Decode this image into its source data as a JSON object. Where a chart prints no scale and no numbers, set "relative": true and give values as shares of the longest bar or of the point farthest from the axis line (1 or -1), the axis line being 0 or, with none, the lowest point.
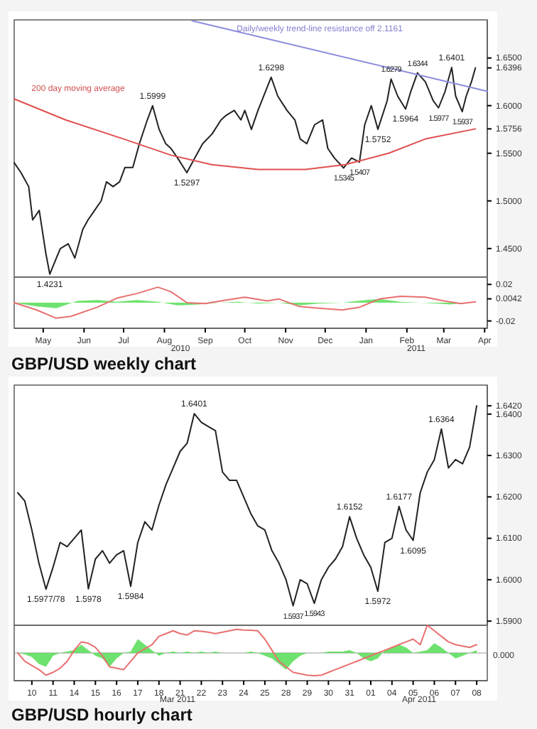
{
  "chart_data": [
    {
      "type": "line",
      "xlim": [
        "2010-04-23",
        "2011-04-17"
      ],
      "ylim": [
        1.42,
        1.69
      ],
      "tick_labels": "y",
      "yticks": [
        {
          "value": 1.65,
          "label": "1.6500"
        },
        {
          "value": 1.6396,
          "label": "1.6396"
        },
        {
          "value": 1.6,
          "label": "1.6000"
        },
        {
          "value": 1.5756,
          "label": "1.5756"
        },
        {
          "value": 1.55,
          "label": "1.5500"
        },
        {
          "value": 1.5,
          "label": "1.5000"
        },
        {
          "value": 1.45,
          "label": "1.4500"
        }
      ],
      "series": [
        {
          "color": "#222222",
          "x": [
            "2010-04-23",
            "2010-04-28",
            "2010-05-04",
            "2010-05-07",
            "2010-05-12",
            "2010-05-17",
            "2010-05-20",
            "2010-05-25",
            "2010-05-28",
            "2010-06-03",
            "2010-06-08",
            "2010-06-14",
            "2010-06-18",
            "2010-06-23",
            "2010-06-28",
            "2010-07-02",
            "2010-07-07",
            "2010-07-12",
            "2010-07-16",
            "2010-07-22",
            "2010-07-27",
            "2010-08-02",
            "2010-08-06",
            "2010-08-11",
            "2010-08-16",
            "2010-08-20",
            "2010-08-25",
            "2010-09-01",
            "2010-09-07",
            "2010-09-13",
            "2010-09-20",
            "2010-09-27",
            "2010-10-01",
            "2010-10-07",
            "2010-10-12",
            "2010-10-15",
            "2010-10-20",
            "2010-10-25",
            "2010-11-04",
            "2010-11-09",
            "2010-11-16",
            "2010-11-22",
            "2010-11-26",
            "2010-12-01",
            "2010-12-07",
            "2010-12-13",
            "2010-12-17",
            "2010-12-22",
            "2010-12-29",
            "2011-01-04",
            "2011-01-10",
            "2011-01-14",
            "2011-01-19",
            "2011-01-24",
            "2011-01-31",
            "2011-02-03",
            "2011-02-08",
            "2011-02-14",
            "2011-02-18",
            "2011-02-23",
            "2011-03-01",
            "2011-03-07",
            "2011-03-11",
            "2011-03-16",
            "2011-03-21",
            "2011-03-24",
            "2011-03-29",
            "2011-04-01",
            "2011-04-05",
            "2011-04-08"
          ],
          "values": [
            1.54,
            1.53,
            1.515,
            1.48,
            1.49,
            1.445,
            1.4231,
            1.44,
            1.45,
            1.455,
            1.44,
            1.47,
            1.48,
            1.49,
            1.5,
            1.52,
            1.515,
            1.52,
            1.535,
            1.535,
            1.56,
            1.585,
            1.5999,
            1.575,
            1.56,
            1.555,
            1.545,
            1.5297,
            1.545,
            1.56,
            1.57,
            1.585,
            1.59,
            1.595,
            1.585,
            1.595,
            1.575,
            1.595,
            1.6298,
            1.61,
            1.595,
            1.585,
            1.565,
            1.56,
            1.58,
            1.585,
            1.555,
            1.545,
            1.5345,
            1.545,
            1.5407,
            1.58,
            1.6,
            1.5752,
            1.605,
            1.6279,
            1.61,
            1.5964,
            1.615,
            1.6344,
            1.625,
            1.605,
            1.5977,
            1.615,
            1.6401,
            1.61,
            1.5937,
            1.61,
            1.625,
            1.6396
          ]
        },
        {
          "color": "#e05050",
          "x": [
            "2010-04-23",
            "2010-06-01",
            "2010-07-15",
            "2010-08-20",
            "2010-09-20",
            "2010-10-25",
            "2010-11-30",
            "2010-12-30",
            "2011-02-01",
            "2011-03-01",
            "2011-04-08"
          ],
          "values": [
            1.607,
            1.585,
            1.565,
            1.548,
            1.538,
            1.533,
            1.533,
            1.538,
            1.55,
            1.565,
            1.5756
          ]
        },
        {
          "color": "#8c8cdc",
          "x": [
            "2010-09-05",
            "2011-04-17"
          ],
          "values": [
            1.689,
            1.615
          ]
        }
      ],
      "annotations": [
        "Daily/weekly trend-line resistance off 2.1161",
        "200 day moving average",
        {
          "text": "1.4231",
          "x": "2010-05-20",
          "y": 1.4231
        },
        {
          "text": "1.5999",
          "x": "2010-08-06",
          "y": 1.5999
        },
        {
          "text": "1.5297",
          "x": "2010-09-01",
          "y": 1.5297
        },
        {
          "text": "1.6298",
          "x": "2010-11-04",
          "y": 1.6298
        },
        {
          "text": "1.5345",
          "x": "2010-12-29",
          "y": 1.5345
        },
        {
          "text": "1.5407",
          "x": "2011-01-10",
          "y": 1.5407
        },
        {
          "text": "1.5752",
          "x": "2011-01-24",
          "y": 1.5752
        },
        {
          "text": "1.6279",
          "x": "2011-02-03",
          "y": 1.6279
        },
        {
          "text": "1.5964",
          "x": "2011-02-14",
          "y": 1.5964
        },
        {
          "text": "1.6344",
          "x": "2011-02-23",
          "y": 1.6344
        },
        {
          "text": "1.5977",
          "x": "2011-03-11",
          "y": 1.5977
        },
        {
          "text": "1.6401",
          "x": "2011-03-21",
          "y": 1.6401
        },
        {
          "text": "1.5937",
          "x": "2011-03-29",
          "y": 1.5937
        }
      ]
    },
    {
      "type": "line",
      "title": "GBP/USD weekly chart",
      "xlim": [
        "2010-04-23",
        "2011-04-17"
      ],
      "ylim": [
        -0.028,
        0.028
      ],
      "xticks": [
        {
          "value": "2010-05-15",
          "label": "May"
        },
        {
          "value": "2010-06-15",
          "label": "Jun"
        },
        {
          "value": "2010-07-15",
          "label": "Jul"
        },
        {
          "value": "2010-08-15",
          "label": "Aug"
        },
        {
          "value": "2010-09-15",
          "label": "Sep"
        },
        {
          "value": "2010-10-15",
          "label": "Oct"
        },
        {
          "value": "2010-11-15",
          "label": "Nov"
        },
        {
          "value": "2010-12-15",
          "label": "Dec"
        },
        {
          "value": "2011-01-15",
          "label": "Jan"
        },
        {
          "value": "2011-02-15",
          "label": "Feb"
        },
        {
          "value": "2011-03-15",
          "label": "Mar"
        },
        {
          "value": "2011-04-15",
          "label": "Apr"
        }
      ],
      "yticks": [
        {
          "value": 0.02,
          "label": "0.02"
        },
        {
          "value": 0.0042,
          "label": "0.0042"
        },
        {
          "value": -0.02,
          "label": "-0.02"
        }
      ],
      "series": [
        {
          "type": "area",
          "color": "#55dd55",
          "x": [
            "2010-04-23",
            "2010-05-10",
            "2010-05-25",
            "2010-06-10",
            "2010-06-25",
            "2010-07-10",
            "2010-07-25",
            "2010-08-10",
            "2010-08-25",
            "2010-09-10",
            "2010-09-25",
            "2010-10-10",
            "2010-10-25",
            "2010-11-10",
            "2010-11-25",
            "2010-12-10",
            "2010-12-28",
            "2011-01-15",
            "2011-01-25",
            "2011-02-10",
            "2011-02-25",
            "2011-03-10",
            "2011-03-20",
            "2011-04-01",
            "2011-04-08"
          ],
          "values": [
            0,
            -0.004,
            -0.006,
            0.002,
            0.003,
            0.001,
            0.003,
            0.001,
            -0.003,
            -0.002,
            0,
            0.001,
            -0.001,
            0,
            -0.003,
            -0.001,
            0,
            0.003,
            0.004,
            0.001,
            0,
            -0.001,
            -0.002,
            0,
            0.001
          ]
        },
        {
          "color": "#e87070",
          "x": [
            "2010-04-23",
            "2010-05-10",
            "2010-05-25",
            "2010-06-05",
            "2010-06-25",
            "2010-07-10",
            "2010-07-25",
            "2010-08-10",
            "2010-08-20",
            "2010-09-01",
            "2010-09-15",
            "2010-10-01",
            "2010-10-15",
            "2010-11-01",
            "2010-11-10",
            "2010-11-25",
            "2010-12-10",
            "2010-12-28",
            "2011-01-10",
            "2011-01-25",
            "2011-02-10",
            "2011-03-01",
            "2011-03-15",
            "2011-03-28",
            "2011-04-08"
          ],
          "values": [
            0,
            -0.008,
            -0.017,
            -0.015,
            -0.005,
            0.005,
            0.01,
            0.017,
            0.012,
            0,
            -0.001,
            0.003,
            0.006,
            0.002,
            0.004,
            -0.004,
            -0.006,
            -0.008,
            -0.005,
            0.004,
            0.007,
            0.006,
            0.002,
            -0.001,
            0.001
          ]
        }
      ],
      "annotations": [
        "2010",
        "2011"
      ]
    },
    {
      "type": "line",
      "tick_labels": "y",
      "ylim": [
        1.589,
        1.647
      ],
      "categories": [
        null,
        null,
        null,
        null,
        null,
        null,
        null,
        null,
        null,
        null,
        null,
        null,
        null,
        null,
        null,
        null,
        null,
        null,
        null,
        null,
        null,
        null,
        null,
        null,
        null,
        null,
        null,
        null,
        null,
        null,
        null,
        null,
        null,
        null,
        null,
        null,
        null,
        null,
        null,
        null,
        null,
        null,
        null,
        null,
        null,
        null,
        null,
        null,
        null,
        null,
        null,
        null,
        null,
        null,
        null,
        null,
        null,
        null,
        null,
        null,
        null,
        null,
        null,
        null,
        null,
        null,
        null
      ],
      "yticks": [
        {
          "value": 1.642,
          "label": "1.6420"
        },
        {
          "value": 1.64,
          "label": "1.6400"
        },
        {
          "value": 1.63,
          "label": "1.6300"
        },
        {
          "value": 1.62,
          "label": "1.6200"
        },
        {
          "value": 1.61,
          "label": "1.6100"
        },
        {
          "value": 1.6,
          "label": "1.6000"
        },
        {
          "value": 1.59,
          "label": "1.5900"
        }
      ],
      "series": [
        {
          "color": "#222222",
          "values": [
            1.621,
            1.619,
            1.612,
            1.604,
            1.5977,
            1.603,
            1.609,
            1.608,
            1.61,
            1.612,
            1.5978,
            1.605,
            1.607,
            1.604,
            1.606,
            1.607,
            1.5984,
            1.609,
            1.614,
            1.612,
            1.618,
            1.623,
            1.627,
            1.631,
            1.633,
            1.6401,
            1.638,
            1.637,
            1.636,
            1.626,
            1.624,
            1.624,
            1.62,
            1.616,
            1.613,
            1.612,
            1.607,
            1.604,
            1.6,
            1.5937,
            1.6,
            1.599,
            1.5943,
            1.6,
            1.603,
            1.605,
            1.608,
            1.6152,
            1.61,
            1.606,
            1.603,
            1.5972,
            1.609,
            1.61,
            1.6177,
            1.612,
            1.6095,
            1.621,
            1.626,
            1.629,
            1.6364,
            1.627,
            1.629,
            1.628,
            1.632,
            1.642,
            null
          ]
        }
      ],
      "annotations": [
        {
          "text": "1.5977/78",
          "y": 1.5977
        },
        {
          "text": "1.5978",
          "y": 1.5978
        },
        {
          "text": "1.5984",
          "y": 1.5984
        },
        {
          "text": "1.6401",
          "y": 1.6401
        },
        {
          "text": "1.5937",
          "y": 1.5937
        },
        {
          "text": "1.5943",
          "y": 1.5943
        },
        {
          "text": "1.6152",
          "y": 1.6152
        },
        {
          "text": "1.5972",
          "y": 1.5972
        },
        {
          "text": "1.6177",
          "y": 1.6177
        },
        {
          "text": "1.6095",
          "y": 1.6095
        },
        {
          "text": "1.6364",
          "y": 1.6364
        }
      ]
    },
    {
      "type": "line",
      "title": "GBP/USD hourly chart",
      "relative": true,
      "categories": [
        null,
        null,
        "10",
        null,
        null,
        "11",
        null,
        null,
        "14",
        null,
        null,
        "15",
        null,
        null,
        "16",
        null,
        null,
        "17",
        null,
        null,
        "18",
        null,
        null,
        "21",
        null,
        null,
        "22",
        null,
        null,
        "23",
        null,
        null,
        "24",
        null,
        null,
        "25",
        null,
        null,
        "28",
        null,
        null,
        "29",
        null,
        null,
        "30",
        null,
        null,
        "31",
        null,
        null,
        "01",
        null,
        null,
        "04",
        null,
        null,
        "05",
        null,
        null,
        "06",
        null,
        null,
        "07",
        null,
        null,
        "08",
        null
      ],
      "series": [
        {
          "type": "area",
          "color": "#55dd55",
          "values": [
            0,
            -0.05,
            -0.15,
            -0.4,
            -0.5,
            -0.1,
            0,
            0.05,
            0.1,
            0.3,
            0.1,
            -0.1,
            -0.2,
            -0.5,
            -0.2,
            0,
            0.05,
            0.5,
            0.3,
            0.1,
            -0.1,
            0,
            0.05,
            0,
            0.05,
            0,
            0.05,
            0,
            0.05,
            0,
            0,
            0,
            0,
            0.05,
            0,
            -0.1,
            -0.2,
            -0.4,
            -0.6,
            -0.3,
            -0.1,
            0,
            0,
            0,
            0.05,
            0.05,
            0.05,
            0.1,
            0,
            -0.2,
            -0.3,
            -0.2,
            0.1,
            0.2,
            0.3,
            0.2,
            0,
            0.05,
            0.1,
            0.35,
            0.2,
            0,
            -0.2,
            -0.1,
            0,
            0.1,
            null
          ]
        },
        {
          "color": "#e87070",
          "values": [
            0,
            -0.3,
            -0.45,
            -0.6,
            -0.8,
            -0.7,
            -0.55,
            -0.3,
            0.1,
            0.4,
            0.35,
            0.2,
            -0.1,
            -0.5,
            -0.55,
            -0.6,
            -0.3,
            0,
            0.15,
            0.3,
            0.6,
            0.7,
            0.8,
            0.7,
            0.65,
            0.8,
            0.78,
            0.75,
            0.7,
            0.75,
            0.8,
            0.85,
            0.83,
            0.82,
            0.8,
            0.5,
            0.1,
            -0.3,
            -0.5,
            -0.7,
            -0.75,
            -0.8,
            -0.82,
            -0.8,
            -0.7,
            -0.6,
            -0.5,
            -0.4,
            -0.3,
            -0.2,
            -0.1,
            0,
            0.1,
            0.2,
            0.3,
            0.4,
            0.5,
            0.3,
            1,
            0.8,
            0.6,
            0.4,
            0.3,
            0.25,
            0.2,
            0.3,
            null
          ]
        }
      ],
      "annotations": [
        "0.000",
        "Mar 2011",
        "Apr 2011"
      ]
    }
  ]
}
